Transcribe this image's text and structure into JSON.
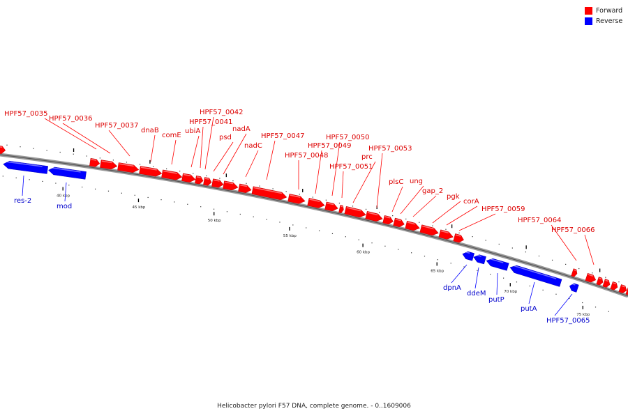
{
  "legend": {
    "items": [
      {
        "label": "Forward",
        "color": "#ff0000"
      },
      {
        "label": "Reverse",
        "color": "#0000ff"
      }
    ]
  },
  "caption": "Helicobacter pylori F57 DNA, complete genome. - 0..1609006",
  "scale": {
    "labels": [
      "40 kbp",
      "45 kbp",
      "50 kbp",
      "55 kbp",
      "60 kbp",
      "65 kbp",
      "70 kbp",
      "75 kbp"
    ]
  },
  "genes": {
    "forward_labels": [
      "HPF57_0035",
      "HPF57_0036",
      "HPF57_0037",
      "dnaB",
      "comE",
      "ubiA",
      "HPF57_0041",
      "HPF57_0042",
      "psd",
      "nadA",
      "nadC",
      "HPF57_0047",
      "HPF57_0048",
      "HPF57_0049",
      "HPF57_0050",
      "HPF57_0051",
      "prc",
      "HPF57_0053",
      "plsC",
      "ung",
      "gap_2",
      "pgk",
      "corA",
      "HPF57_0059",
      "HPF57_0064",
      "HPF57_0066"
    ],
    "reverse_labels": [
      "res-2",
      "mod",
      "dpnA",
      "ddeM",
      "putP",
      "putA",
      "HPF57_0065"
    ]
  },
  "colors": {
    "forward": "#ff0000",
    "reverse": "#0000ff",
    "backbone": "#999999"
  }
}
